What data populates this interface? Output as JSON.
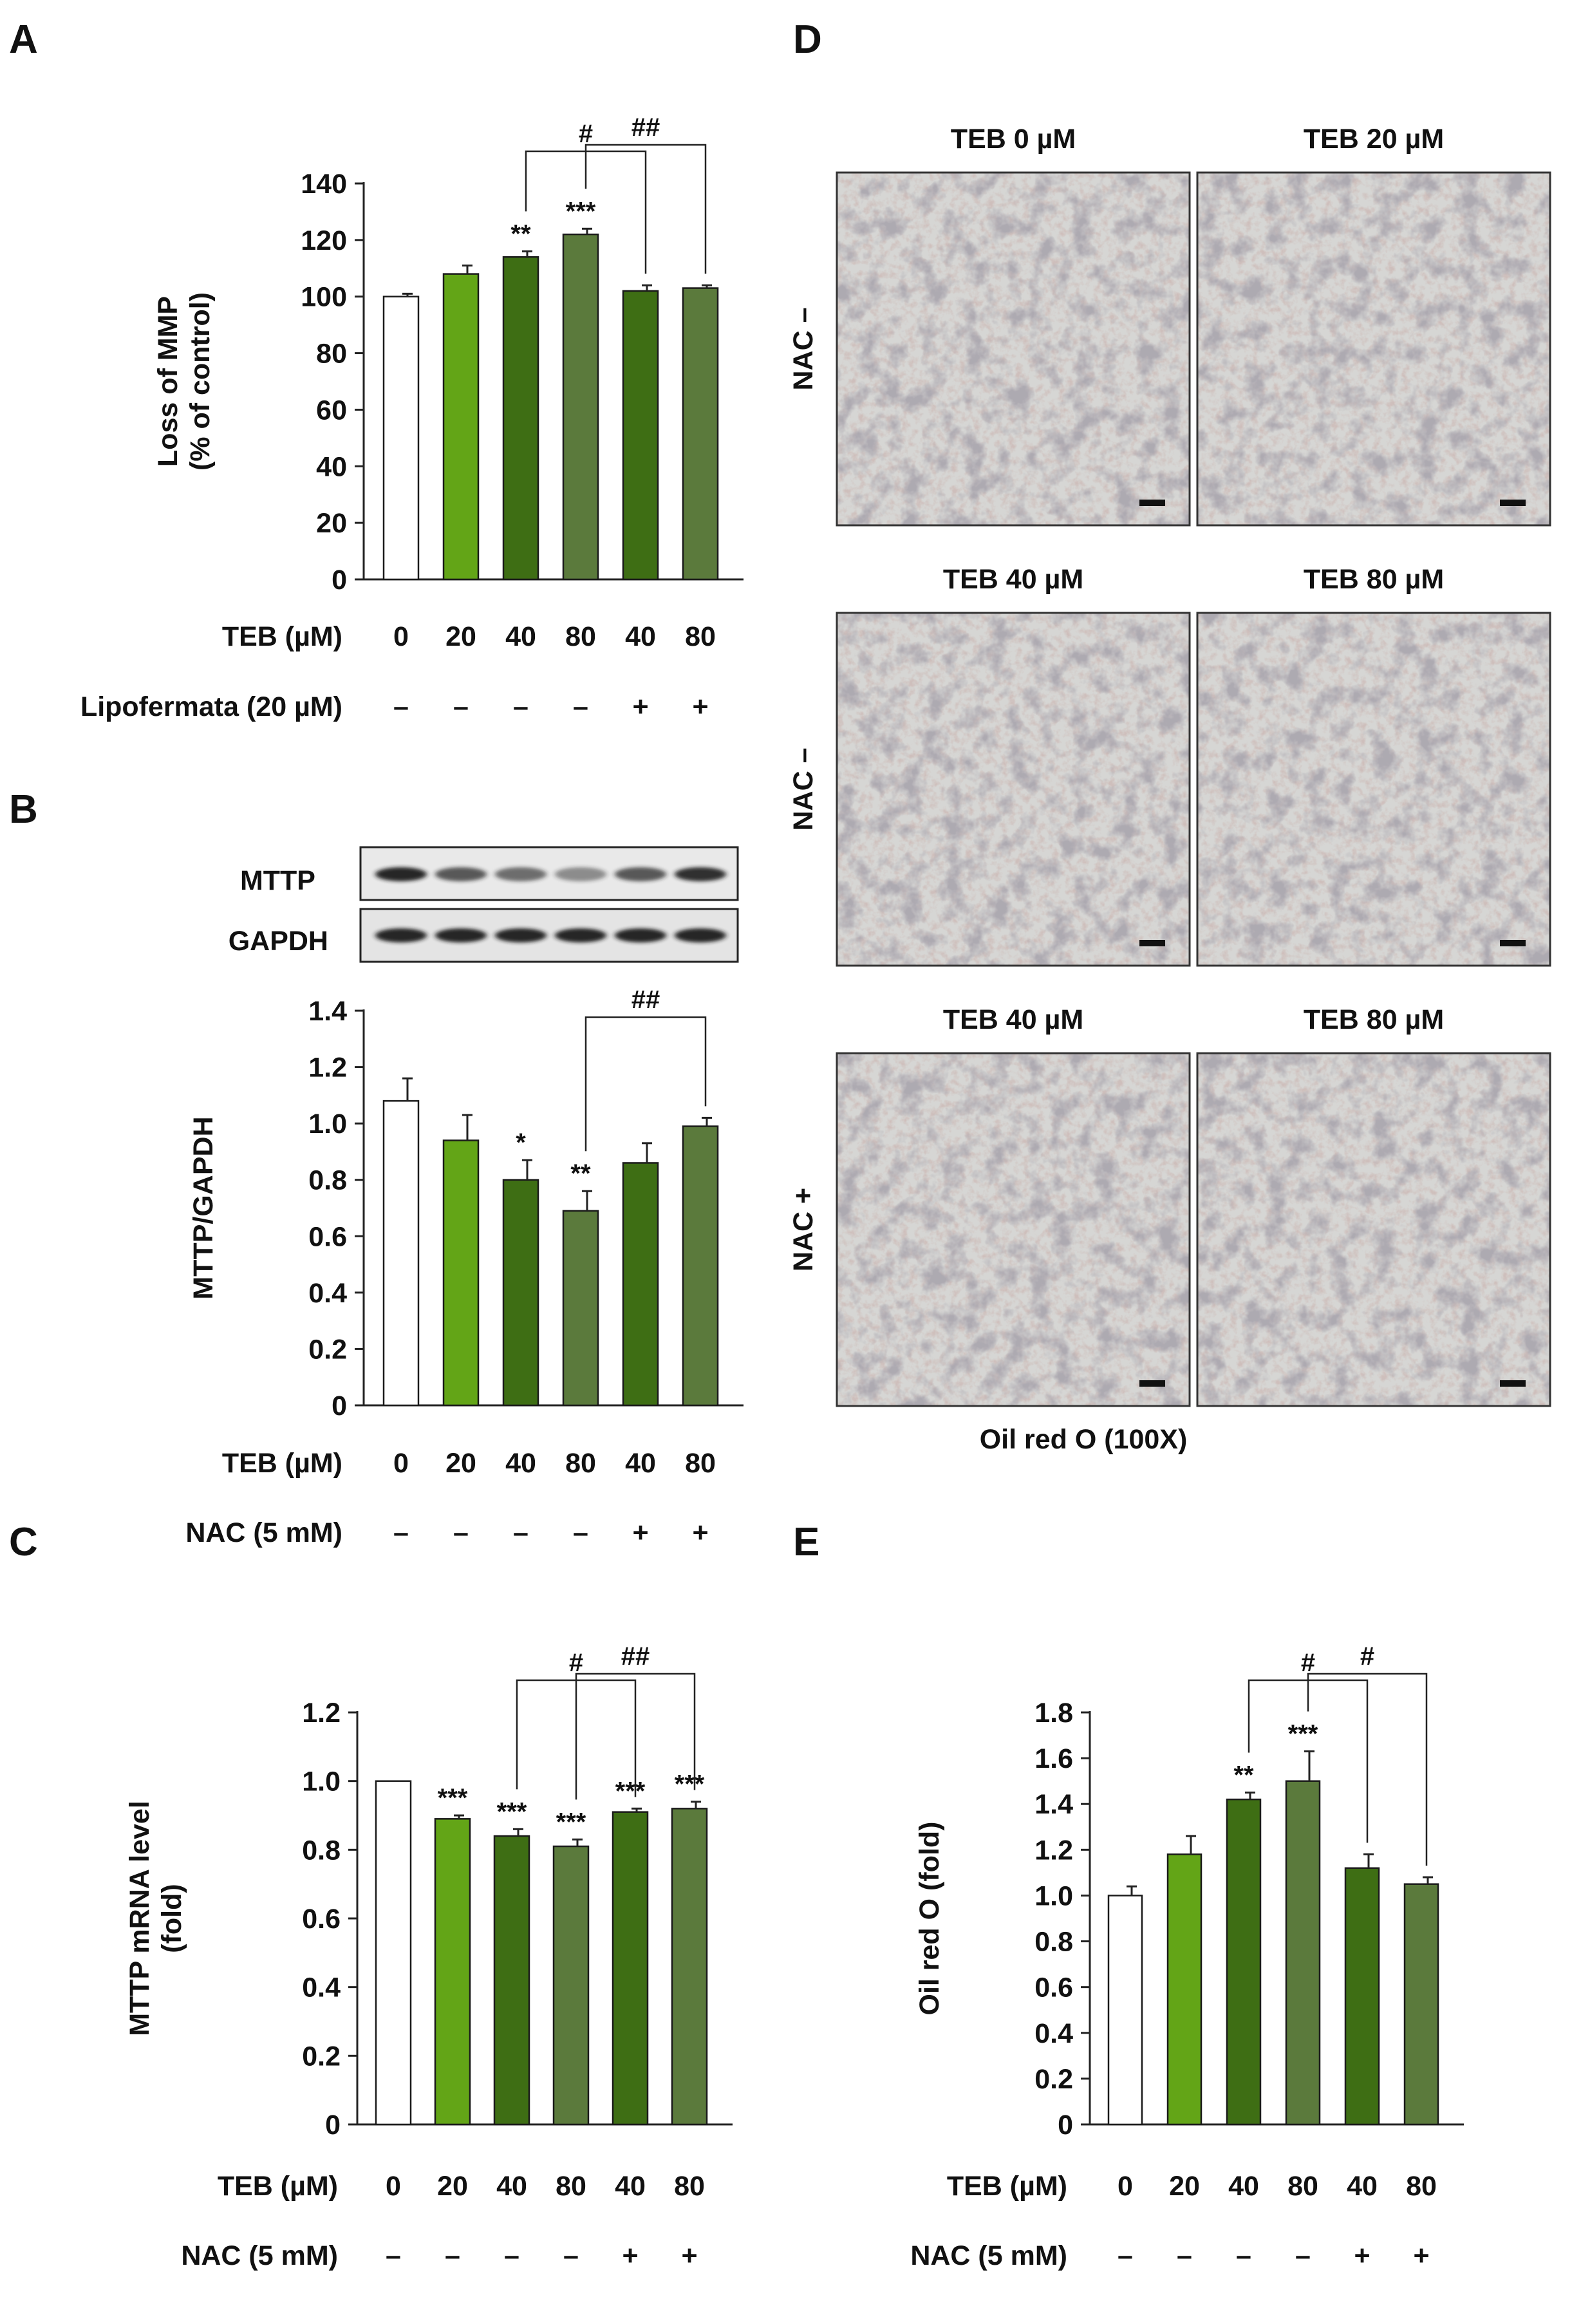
{
  "panel_letters": [
    "A",
    "B",
    "C",
    "D",
    "E"
  ],
  "colors": {
    "control": "#ffffff",
    "teb20": "#63a517",
    "treated_dark": "#3e6e14",
    "treated_olive": "#5b7a3c",
    "axis": "#222222"
  },
  "chart_data": [
    {
      "panel": "A",
      "type": "bar",
      "ylabel_lines": [
        "Loss of MMP",
        "(% of control)"
      ],
      "ylim": [
        0,
        140
      ],
      "yticks": [
        0,
        20,
        40,
        60,
        80,
        100,
        120,
        140
      ],
      "categories": [
        "0",
        "20",
        "40",
        "80",
        "40",
        "80"
      ],
      "values": [
        100,
        108,
        114,
        122,
        102,
        103
      ],
      "errors": [
        1,
        3,
        2,
        2,
        2,
        1
      ],
      "significance": [
        "",
        "",
        "**",
        "***",
        "",
        ""
      ],
      "brackets": [
        {
          "from": 2,
          "to": 4,
          "label": "#"
        },
        {
          "from": 3,
          "to": 5,
          "label": "##"
        }
      ],
      "row_labels": [
        {
          "label": "TEB (µM)",
          "values": [
            "0",
            "20",
            "40",
            "80",
            "40",
            "80"
          ]
        },
        {
          "label": "Lipofermata (20 µM)",
          "values": [
            "–",
            "–",
            "–",
            "–",
            "+",
            "+"
          ]
        }
      ]
    },
    {
      "panel": "B",
      "type": "bar",
      "ylabel_lines": [
        "MTTP/GAPDH"
      ],
      "ylim": [
        0,
        1.4
      ],
      "yticks": [
        "0",
        "0.2",
        "0.4",
        "0.6",
        "0.8",
        "1.0",
        "1.2",
        "1.4"
      ],
      "categories": [
        "0",
        "20",
        "40",
        "80",
        "40",
        "80"
      ],
      "values": [
        1.08,
        0.94,
        0.8,
        0.69,
        0.86,
        0.99
      ],
      "errors": [
        0.08,
        0.09,
        0.07,
        0.07,
        0.07,
        0.03
      ],
      "significance": [
        "",
        "",
        "*",
        "**",
        "",
        ""
      ],
      "brackets": [
        {
          "from": 3,
          "to": 5,
          "label": "##"
        }
      ],
      "row_labels": [
        {
          "label": "TEB (µM)",
          "values": [
            "0",
            "20",
            "40",
            "80",
            "40",
            "80"
          ]
        },
        {
          "label": "NAC (5 mM)",
          "values": [
            "–",
            "–",
            "–",
            "–",
            "+",
            "+"
          ]
        }
      ]
    },
    {
      "panel": "C",
      "type": "bar",
      "ylabel_lines": [
        "MTTP mRNA level",
        "(fold)"
      ],
      "ylim": [
        0,
        1.2
      ],
      "yticks": [
        "0",
        "0.2",
        "0.4",
        "0.6",
        "0.8",
        "1.0",
        "1.2"
      ],
      "categories": [
        "0",
        "20",
        "40",
        "80",
        "40",
        "80"
      ],
      "values": [
        1.0,
        0.89,
        0.84,
        0.81,
        0.91,
        0.92
      ],
      "errors": [
        0,
        0.01,
        0.02,
        0.02,
        0.01,
        0.02
      ],
      "significance": [
        "",
        "***",
        "***",
        "***",
        "***",
        "***"
      ],
      "brackets": [
        {
          "from": 2,
          "to": 4,
          "label": "#"
        },
        {
          "from": 3,
          "to": 5,
          "label": "##"
        }
      ],
      "row_labels": [
        {
          "label": "TEB (µM)",
          "values": [
            "0",
            "20",
            "40",
            "80",
            "40",
            "80"
          ]
        },
        {
          "label": "NAC (5 mM)",
          "values": [
            "–",
            "–",
            "–",
            "–",
            "+",
            "+"
          ]
        }
      ]
    },
    {
      "panel": "E",
      "type": "bar",
      "ylabel_lines": [
        "Oil red O (fold)"
      ],
      "ylim": [
        0,
        1.8
      ],
      "yticks": [
        "0",
        "0.2",
        "0.4",
        "0.6",
        "0.8",
        "1.0",
        "1.2",
        "1.4",
        "1.6",
        "1.8"
      ],
      "categories": [
        "0",
        "20",
        "40",
        "80",
        "40",
        "80"
      ],
      "values": [
        1.0,
        1.18,
        1.42,
        1.5,
        1.12,
        1.05
      ],
      "errors": [
        0.04,
        0.08,
        0.03,
        0.13,
        0.06,
        0.03
      ],
      "significance": [
        "",
        "",
        "**",
        "***",
        "",
        ""
      ],
      "brackets": [
        {
          "from": 2,
          "to": 4,
          "label": "#"
        },
        {
          "from": 3,
          "to": 5,
          "label": "#"
        }
      ],
      "row_labels": [
        {
          "label": "TEB (µM)",
          "values": [
            "0",
            "20",
            "40",
            "80",
            "40",
            "80"
          ]
        },
        {
          "label": "NAC (5 mM)",
          "values": [
            "–",
            "–",
            "–",
            "–",
            "+",
            "+"
          ]
        }
      ]
    }
  ],
  "blot": {
    "labels": [
      "MTTP",
      "GAPDH"
    ],
    "mttp_band_intensity": [
      0.95,
      0.7,
      0.6,
      0.45,
      0.7,
      0.9
    ],
    "gapdh_band_intensity": [
      0.95,
      0.95,
      0.95,
      0.95,
      0.95,
      0.95
    ]
  },
  "micrographs": {
    "row_labels": [
      "NAC –",
      "NAC –",
      "NAC +"
    ],
    "titles": [
      "TEB 0 µM",
      "TEB 20 µM",
      "TEB 40 µM",
      "TEB 80 µM",
      "TEB 40 µM",
      "TEB 80 µM"
    ],
    "caption": "Oil red O (100X)"
  }
}
